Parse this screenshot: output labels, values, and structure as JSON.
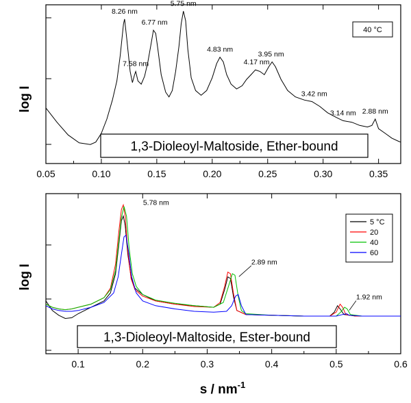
{
  "chart_data": [
    {
      "type": "line",
      "title": "1,3-Dioleoyl-Maltoside, Ether-bound",
      "ylabel": "log I",
      "xlabel": "",
      "xlim": [
        0.05,
        0.37
      ],
      "x_ticks": [
        "0.05",
        "0.10",
        "0.15",
        "0.20",
        "0.25",
        "0.30",
        "0.35"
      ],
      "y_scale": "log",
      "grid": false,
      "temperature_label": "40 °C",
      "series": [
        {
          "color": "#000000",
          "points": [
            [
              0.05,
              0.35
            ],
            [
              0.06,
              0.26
            ],
            [
              0.07,
              0.18
            ],
            [
              0.08,
              0.13
            ],
            [
              0.09,
              0.12
            ],
            [
              0.095,
              0.135
            ],
            [
              0.1,
              0.19
            ],
            [
              0.105,
              0.28
            ],
            [
              0.11,
              0.4
            ],
            [
              0.114,
              0.52
            ],
            [
              0.117,
              0.68
            ],
            [
              0.12,
              0.88
            ],
            [
              0.121,
              0.91
            ],
            [
              0.123,
              0.78
            ],
            [
              0.126,
              0.58
            ],
            [
              0.128,
              0.51
            ],
            [
              0.13,
              0.56
            ],
            [
              0.131,
              0.58
            ],
            [
              0.133,
              0.52
            ],
            [
              0.136,
              0.5
            ],
            [
              0.139,
              0.55
            ],
            [
              0.142,
              0.64
            ],
            [
              0.145,
              0.76
            ],
            [
              0.147,
              0.84
            ],
            [
              0.149,
              0.82
            ],
            [
              0.151,
              0.72
            ],
            [
              0.154,
              0.56
            ],
            [
              0.158,
              0.45
            ],
            [
              0.161,
              0.42
            ],
            [
              0.164,
              0.46
            ],
            [
              0.167,
              0.58
            ],
            [
              0.17,
              0.74
            ],
            [
              0.172,
              0.88
            ],
            [
              0.174,
              0.96
            ],
            [
              0.176,
              0.9
            ],
            [
              0.178,
              0.72
            ],
            [
              0.181,
              0.54
            ],
            [
              0.185,
              0.46
            ],
            [
              0.19,
              0.43
            ],
            [
              0.195,
              0.46
            ],
            [
              0.2,
              0.54
            ],
            [
              0.204,
              0.63
            ],
            [
              0.207,
              0.67
            ],
            [
              0.21,
              0.64
            ],
            [
              0.213,
              0.56
            ],
            [
              0.217,
              0.5
            ],
            [
              0.222,
              0.47
            ],
            [
              0.227,
              0.49
            ],
            [
              0.231,
              0.53
            ],
            [
              0.235,
              0.56
            ],
            [
              0.239,
              0.59
            ],
            [
              0.243,
              0.58
            ],
            [
              0.247,
              0.56
            ],
            [
              0.251,
              0.61
            ],
            [
              0.254,
              0.64
            ],
            [
              0.257,
              0.61
            ],
            [
              0.262,
              0.53
            ],
            [
              0.268,
              0.46
            ],
            [
              0.275,
              0.42
            ],
            [
              0.283,
              0.4
            ],
            [
              0.29,
              0.39
            ],
            [
              0.297,
              0.36
            ],
            [
              0.304,
              0.32
            ],
            [
              0.312,
              0.29
            ],
            [
              0.318,
              0.27
            ],
            [
              0.326,
              0.26
            ],
            [
              0.333,
              0.24
            ],
            [
              0.34,
              0.23
            ],
            [
              0.344,
              0.24
            ],
            [
              0.347,
              0.28
            ],
            [
              0.35,
              0.22
            ],
            [
              0.356,
              0.19
            ],
            [
              0.362,
              0.16
            ],
            [
              0.368,
              0.14
            ],
            [
              0.37,
              0.135
            ]
          ]
        }
      ],
      "annotations": [
        {
          "text": "8.26 nm",
          "x": 0.121
        },
        {
          "text": "7.58 nm",
          "x": 0.131
        },
        {
          "text": "6.77 nm",
          "x": 0.148
        },
        {
          "text": "5.75 nm",
          "x": 0.174
        },
        {
          "text": "4.83 nm",
          "x": 0.207
        },
        {
          "text": "4.17 nm",
          "x": 0.24
        },
        {
          "text": "3.95 nm",
          "x": 0.253
        },
        {
          "text": "3.42 nm",
          "x": 0.292
        },
        {
          "text": "3.14 nm",
          "x": 0.318
        },
        {
          "text": "2.88 nm",
          "x": 0.347
        }
      ]
    },
    {
      "type": "line",
      "title": "1,3-Dioleoyl-Maltoside, Ester-bound",
      "ylabel": "log I",
      "xlabel": "s / nm",
      "xlabel_superscript": "-1",
      "xlim": [
        0.05,
        0.6
      ],
      "x_ticks": [
        "0.1",
        "0.2",
        "0.3",
        "0.4",
        "0.5",
        "0.6"
      ],
      "y_scale": "log",
      "grid": false,
      "legend_position": "top-right",
      "legend_first_entry": "5 °C",
      "series": [
        {
          "name": "5",
          "color": "#000000",
          "points": [
            [
              0.05,
              0.33
            ],
            [
              0.06,
              0.27
            ],
            [
              0.07,
              0.24
            ],
            [
              0.08,
              0.22
            ],
            [
              0.09,
              0.225
            ],
            [
              0.1,
              0.25
            ],
            [
              0.12,
              0.29
            ],
            [
              0.14,
              0.33
            ],
            [
              0.15,
              0.38
            ],
            [
              0.158,
              0.5
            ],
            [
              0.163,
              0.68
            ],
            [
              0.167,
              0.83
            ],
            [
              0.17,
              0.86
            ],
            [
              0.173,
              0.8
            ],
            [
              0.177,
              0.62
            ],
            [
              0.182,
              0.48
            ],
            [
              0.188,
              0.41
            ],
            [
              0.2,
              0.37
            ],
            [
              0.22,
              0.33
            ],
            [
              0.25,
              0.31
            ],
            [
              0.28,
              0.3
            ],
            [
              0.31,
              0.29
            ],
            [
              0.32,
              0.31
            ],
            [
              0.327,
              0.4
            ],
            [
              0.332,
              0.48
            ],
            [
              0.336,
              0.47
            ],
            [
              0.341,
              0.35
            ],
            [
              0.346,
              0.27
            ],
            [
              0.36,
              0.245
            ],
            [
              0.4,
              0.24
            ],
            [
              0.45,
              0.235
            ],
            [
              0.49,
              0.235
            ],
            [
              0.497,
              0.26
            ],
            [
              0.502,
              0.3
            ],
            [
              0.506,
              0.28
            ],
            [
              0.512,
              0.245
            ],
            [
              0.53,
              0.235
            ],
            [
              0.56,
              0.235
            ],
            [
              0.6,
              0.235
            ]
          ]
        },
        {
          "name": "20",
          "color": "#ff0000",
          "points": [
            [
              0.05,
              0.31
            ],
            [
              0.06,
              0.29
            ],
            [
              0.07,
              0.28
            ],
            [
              0.08,
              0.275
            ],
            [
              0.09,
              0.28
            ],
            [
              0.1,
              0.29
            ],
            [
              0.12,
              0.31
            ],
            [
              0.14,
              0.35
            ],
            [
              0.15,
              0.41
            ],
            [
              0.158,
              0.56
            ],
            [
              0.163,
              0.76
            ],
            [
              0.167,
              0.9
            ],
            [
              0.17,
              0.93
            ],
            [
              0.173,
              0.86
            ],
            [
              0.177,
              0.64
            ],
            [
              0.182,
              0.47
            ],
            [
              0.188,
              0.4
            ],
            [
              0.2,
              0.36
            ],
            [
              0.22,
              0.33
            ],
            [
              0.25,
              0.31
            ],
            [
              0.28,
              0.295
            ],
            [
              0.31,
              0.29
            ],
            [
              0.32,
              0.32
            ],
            [
              0.327,
              0.42
            ],
            [
              0.332,
              0.51
            ],
            [
              0.336,
              0.5
            ],
            [
              0.341,
              0.37
            ],
            [
              0.346,
              0.27
            ],
            [
              0.36,
              0.245
            ],
            [
              0.4,
              0.24
            ],
            [
              0.45,
              0.235
            ],
            [
              0.49,
              0.235
            ],
            [
              0.5,
              0.26
            ],
            [
              0.506,
              0.31
            ],
            [
              0.51,
              0.29
            ],
            [
              0.515,
              0.245
            ],
            [
              0.53,
              0.235
            ],
            [
              0.56,
              0.235
            ],
            [
              0.6,
              0.235
            ]
          ]
        },
        {
          "name": "40",
          "color": "#00c000",
          "points": [
            [
              0.05,
              0.31
            ],
            [
              0.06,
              0.29
            ],
            [
              0.07,
              0.28
            ],
            [
              0.08,
              0.275
            ],
            [
              0.09,
              0.28
            ],
            [
              0.1,
              0.29
            ],
            [
              0.12,
              0.31
            ],
            [
              0.14,
              0.35
            ],
            [
              0.15,
              0.4
            ],
            [
              0.158,
              0.52
            ],
            [
              0.163,
              0.7
            ],
            [
              0.167,
              0.85
            ],
            [
              0.171,
              0.92
            ],
            [
              0.175,
              0.86
            ],
            [
              0.179,
              0.66
            ],
            [
              0.184,
              0.5
            ],
            [
              0.19,
              0.42
            ],
            [
              0.2,
              0.37
            ],
            [
              0.22,
              0.335
            ],
            [
              0.25,
              0.315
            ],
            [
              0.28,
              0.3
            ],
            [
              0.31,
              0.29
            ],
            [
              0.325,
              0.32
            ],
            [
              0.333,
              0.42
            ],
            [
              0.339,
              0.5
            ],
            [
              0.343,
              0.49
            ],
            [
              0.348,
              0.36
            ],
            [
              0.353,
              0.27
            ],
            [
              0.36,
              0.25
            ],
            [
              0.4,
              0.24
            ],
            [
              0.45,
              0.235
            ],
            [
              0.5,
              0.235
            ],
            [
              0.507,
              0.26
            ],
            [
              0.513,
              0.29
            ],
            [
              0.517,
              0.28
            ],
            [
              0.522,
              0.245
            ],
            [
              0.54,
              0.235
            ],
            [
              0.56,
              0.235
            ],
            [
              0.6,
              0.235
            ]
          ]
        },
        {
          "name": "60",
          "color": "#0000ff",
          "points": [
            [
              0.05,
              0.3
            ],
            [
              0.06,
              0.28
            ],
            [
              0.07,
              0.27
            ],
            [
              0.08,
              0.265
            ],
            [
              0.09,
              0.265
            ],
            [
              0.1,
              0.27
            ],
            [
              0.12,
              0.29
            ],
            [
              0.14,
              0.32
            ],
            [
              0.155,
              0.38
            ],
            [
              0.162,
              0.48
            ],
            [
              0.167,
              0.62
            ],
            [
              0.171,
              0.73
            ],
            [
              0.174,
              0.74
            ],
            [
              0.178,
              0.64
            ],
            [
              0.183,
              0.48
            ],
            [
              0.19,
              0.38
            ],
            [
              0.2,
              0.33
            ],
            [
              0.22,
              0.3
            ],
            [
              0.25,
              0.28
            ],
            [
              0.28,
              0.265
            ],
            [
              0.31,
              0.26
            ],
            [
              0.33,
              0.265
            ],
            [
              0.338,
              0.3
            ],
            [
              0.344,
              0.36
            ],
            [
              0.348,
              0.37
            ],
            [
              0.353,
              0.3
            ],
            [
              0.36,
              0.245
            ],
            [
              0.4,
              0.24
            ],
            [
              0.45,
              0.235
            ],
            [
              0.5,
              0.235
            ],
            [
              0.51,
              0.245
            ],
            [
              0.516,
              0.25
            ],
            [
              0.52,
              0.24
            ],
            [
              0.54,
              0.235
            ],
            [
              0.56,
              0.235
            ],
            [
              0.6,
              0.235
            ]
          ]
        }
      ],
      "annotations": [
        {
          "text": "5.78 nm",
          "x": 0.173
        },
        {
          "text": "2.89 nm",
          "x": 0.345
        },
        {
          "text": "1.92 nm",
          "x": 0.516
        }
      ]
    }
  ]
}
